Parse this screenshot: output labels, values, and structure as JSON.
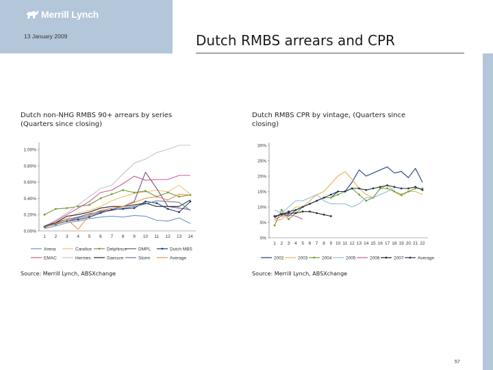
{
  "header": {
    "brand": "Merrill Lynch",
    "date": "13 January 2009",
    "title": "Dutch RMBS arrears and CPR"
  },
  "page_number": "57",
  "colors": {
    "brand_panel": "#b3c6da"
  },
  "chart_data": [
    {
      "type": "line",
      "title": "Dutch non-NHG RMBS 90+ arrears by series (Quarters since closing)",
      "source": "Source: Merrill Lynch, ABSXchange",
      "x": [
        1,
        2,
        3,
        4,
        5,
        6,
        7,
        8,
        9,
        10,
        11,
        12,
        13,
        14
      ],
      "y_ticks": [
        "0.00%",
        "0.20%",
        "0.40%",
        "0.60%",
        "0.80%",
        "1.00%"
      ],
      "ylim": [
        0,
        1.05
      ],
      "grid": false,
      "legend_position": "bottom",
      "series": [
        {
          "name": "Arena",
          "color": "#6a93c4",
          "marker": false,
          "values": [
            0.03,
            0.06,
            0.1,
            0.12,
            0.15,
            0.17,
            0.18,
            0.17,
            0.19,
            0.18,
            0.13,
            0.12,
            0.16,
            0.09
          ]
        },
        {
          "name": "Candice",
          "color": "#e8c279",
          "marker": false,
          "values": [
            0.05,
            0.1,
            0.15,
            0.22,
            0.25,
            0.3,
            0.37,
            0.42,
            0.46,
            0.48,
            0.5,
            0.48,
            0.56,
            0.45
          ]
        },
        {
          "name": "Delphinus",
          "color": "#6d9a34",
          "marker": true,
          "values": [
            0.2,
            0.27,
            0.28,
            0.3,
            0.32,
            0.4,
            0.45,
            0.5,
            0.47,
            0.49,
            0.42,
            0.47,
            0.42,
            0.44
          ]
        },
        {
          "name": "DMPL",
          "color": "#7a4a80",
          "marker": false,
          "values": [
            0.04,
            0.1,
            0.14,
            0.17,
            0.21,
            0.24,
            0.26,
            0.3,
            0.36,
            0.72,
            0.52,
            0.3,
            0.28,
            0.26
          ]
        },
        {
          "name": "Dutch MBS",
          "color": "#1a3a78",
          "marker": true,
          "values": [
            0.05,
            0.08,
            0.12,
            0.14,
            0.17,
            0.22,
            0.26,
            0.27,
            0.28,
            0.36,
            0.34,
            0.27,
            0.23,
            0.36
          ]
        },
        {
          "name": "EMAC",
          "color": "#d0569a",
          "marker": false,
          "values": [
            0.05,
            0.12,
            0.2,
            0.28,
            0.36,
            0.47,
            0.5,
            0.58,
            0.67,
            0.62,
            0.63,
            0.63,
            0.68,
            0.68
          ]
        },
        {
          "name": "Hermes",
          "color": "#c4c4c4",
          "marker": false,
          "values": [
            0.06,
            0.13,
            0.22,
            0.32,
            0.42,
            0.52,
            0.56,
            0.7,
            0.83,
            0.88,
            0.96,
            1.0,
            1.05,
            1.05
          ]
        },
        {
          "name": "Saecure",
          "color": "#222222",
          "marker": false,
          "values": [
            0.06,
            0.1,
            0.18,
            0.2,
            0.23,
            0.28,
            0.3,
            0.3,
            0.32,
            0.34,
            0.3,
            0.3,
            0.3,
            0.38
          ]
        },
        {
          "name": "Storm",
          "color": "#5f7c96",
          "marker": false,
          "values": [
            0.05,
            0.08,
            0.12,
            0.16,
            0.19,
            0.23,
            0.25,
            0.28,
            0.3,
            0.33,
            0.37,
            0.36,
            0.35,
            0.25
          ]
        },
        {
          "name": "Average",
          "color": "#e99044",
          "marker": false,
          "values": [
            0.05,
            0.09,
            0.14,
            0.02,
            0.2,
            0.25,
            0.28,
            0.3,
            0.35,
            0.4,
            0.42,
            0.38,
            0.45,
            0.44
          ]
        }
      ]
    },
    {
      "type": "line",
      "title": "Dutch RMBS CPR by vintage, (Quarters since closing)",
      "source": "Source: Merrill Lynch, ABSXchange",
      "x": [
        1,
        2,
        3,
        4,
        5,
        6,
        7,
        8,
        9,
        10,
        11,
        12,
        13,
        14,
        15,
        16,
        17,
        18,
        19,
        20,
        21,
        22
      ],
      "y_ticks": [
        "0%",
        "5%",
        "10%",
        "15%",
        "20%",
        "25%",
        "30%"
      ],
      "ylim": [
        0,
        30
      ],
      "grid": false,
      "legend_position": "bottom",
      "series": [
        {
          "name": "2002",
          "color": "#1a3a78",
          "marker": false,
          "values": [
            6.5,
            8,
            7,
            9,
            10,
            11,
            12,
            13,
            13,
            15,
            15,
            18,
            22,
            20,
            21,
            22,
            23,
            21,
            21.5,
            19.5,
            22.5,
            18
          ]
        },
        {
          "name": "2003",
          "color": "#e8b04e",
          "marker": false,
          "values": [
            5.5,
            6,
            8,
            10,
            10,
            12,
            14,
            15,
            17.5,
            20,
            21.5,
            19,
            16,
            14,
            13,
            16,
            17,
            15,
            13.5,
            15,
            15,
            14
          ]
        },
        {
          "name": "2004",
          "color": "#6d9a34",
          "marker": true,
          "values": [
            4,
            9,
            6,
            8,
            10,
            11,
            12,
            13,
            13,
            14,
            15,
            16,
            14,
            12,
            13,
            16,
            16,
            15,
            14,
            15,
            16,
            16
          ]
        },
        {
          "name": "2005",
          "color": "#8eb8d8",
          "marker": false,
          "values": [
            9,
            8,
            10,
            12,
            12,
            13,
            14,
            12,
            11,
            11,
            11,
            10,
            11,
            13,
            13,
            14,
            15,
            16,
            null,
            null,
            null,
            null
          ]
        },
        {
          "name": "2006",
          "color": "#d0569a",
          "marker": false,
          "values": [
            6,
            7,
            7.5,
            7,
            6,
            null,
            null,
            null,
            null,
            null,
            null,
            null,
            null,
            null,
            null,
            null,
            null,
            null,
            null,
            null,
            null,
            null
          ]
        },
        {
          "name": "2007",
          "color": "#222222",
          "marker": true,
          "values": [
            7,
            7.5,
            8,
            8,
            8.5,
            8.5,
            8,
            7.5,
            7,
            null,
            null,
            null,
            null,
            null,
            null,
            null,
            null,
            null,
            null,
            null,
            null,
            null
          ]
        },
        {
          "name": "Average",
          "color": "#1f2f45",
          "marker": true,
          "values": [
            7,
            7.5,
            8.5,
            9,
            10,
            11,
            12,
            13,
            14,
            15,
            15,
            16,
            16,
            15.5,
            16,
            16.5,
            17,
            16.5,
            16,
            16,
            16.5,
            15.5
          ]
        }
      ]
    }
  ]
}
